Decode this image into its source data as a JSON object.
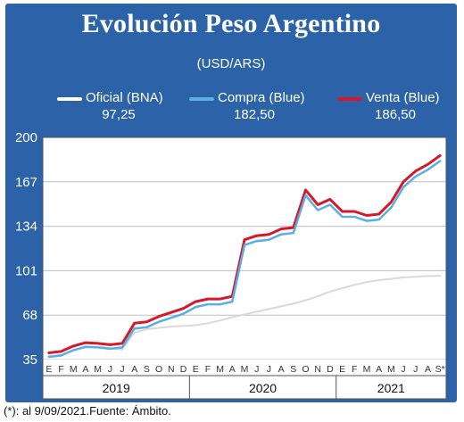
{
  "header": {
    "title": "Evolución Peso Argentino",
    "subtitle": "(USD/ARS)"
  },
  "legend": [
    {
      "name": "Oficial (BNA)",
      "value": "97,25",
      "color": "#ffffff"
    },
    {
      "name": "Compra (Blue)",
      "value": "182,50",
      "color": "#5aaee6"
    },
    {
      "name": "Venta (Blue)",
      "value": "186,50",
      "color": "#d7182a"
    }
  ],
  "footnote": "(*): al 9/09/2021.Fuente: Ámbito.",
  "colors": {
    "frame": "#2b62a8",
    "plot": "#ffffff",
    "grid": "#bfbfbf",
    "oficial_line": "#d9d9d9",
    "compra": "#5aaee6",
    "venta": "#d7182a"
  },
  "chart_data": {
    "type": "line",
    "title": "Evolución Peso Argentino",
    "subtitle": "(USD/ARS)",
    "ylim": [
      35,
      200
    ],
    "yticks": [
      "35",
      "68",
      "101",
      "134",
      "167",
      "200"
    ],
    "grid": "horizontal",
    "legend_position": "top",
    "month_labels": [
      "E",
      "F",
      "M",
      "A",
      "M",
      "J",
      "J",
      "A",
      "S",
      "O",
      "N",
      "D",
      "E",
      "F",
      "M",
      "A",
      "M",
      "J",
      "J",
      "A",
      "S",
      "O",
      "N",
      "D",
      "E",
      "F",
      "M",
      "A",
      "M",
      "J",
      "J",
      "A",
      "S*"
    ],
    "years": [
      "2019",
      "2020",
      "2021"
    ],
    "x_unit": "months since Jan 2019",
    "series": [
      {
        "name": "Oficial (BNA)",
        "points": [
          [
            0,
            37.5
          ],
          [
            1,
            38.5
          ],
          [
            2,
            41.5
          ],
          [
            3,
            44
          ],
          [
            4,
            44.5
          ],
          [
            5,
            43.5
          ],
          [
            6,
            42.5
          ],
          [
            7,
            55
          ],
          [
            8,
            57.5
          ],
          [
            9,
            58.5
          ],
          [
            10,
            59.5
          ],
          [
            11,
            60
          ],
          [
            12,
            60.5
          ],
          [
            13,
            62
          ],
          [
            14,
            64
          ],
          [
            15,
            66.5
          ],
          [
            16,
            68.5
          ],
          [
            17,
            70.5
          ],
          [
            18,
            72.5
          ],
          [
            19,
            74.5
          ],
          [
            20,
            76.5
          ],
          [
            21,
            79
          ],
          [
            22,
            82
          ],
          [
            23,
            85.5
          ],
          [
            24,
            88
          ],
          [
            25,
            90.5
          ],
          [
            26,
            92.5
          ],
          [
            27,
            94
          ],
          [
            28,
            95
          ],
          [
            29,
            96
          ],
          [
            30,
            96.5
          ],
          [
            31,
            97
          ],
          [
            32,
            97.25
          ]
        ]
      },
      {
        "name": "Compra (Blue)",
        "points": [
          [
            0,
            37
          ],
          [
            1,
            38
          ],
          [
            2,
            42
          ],
          [
            3,
            44.5
          ],
          [
            4,
            44
          ],
          [
            5,
            43
          ],
          [
            6,
            44
          ],
          [
            7,
            58
          ],
          [
            8,
            59
          ],
          [
            9,
            63
          ],
          [
            10,
            66
          ],
          [
            11,
            69
          ],
          [
            12,
            74
          ],
          [
            13,
            76
          ],
          [
            14,
            76
          ],
          [
            15,
            78
          ],
          [
            16,
            120
          ],
          [
            17,
            123
          ],
          [
            18,
            124
          ],
          [
            19,
            128
          ],
          [
            20,
            129
          ],
          [
            21,
            157
          ],
          [
            22,
            146
          ],
          [
            23,
            150
          ],
          [
            24,
            141
          ],
          [
            25,
            141
          ],
          [
            26,
            138
          ],
          [
            27,
            139
          ],
          [
            28,
            148
          ],
          [
            29,
            163
          ],
          [
            30,
            171
          ],
          [
            31,
            176
          ],
          [
            32,
            182.5
          ]
        ]
      },
      {
        "name": "Venta (Blue)",
        "points": [
          [
            0,
            40
          ],
          [
            1,
            41
          ],
          [
            2,
            45
          ],
          [
            3,
            47.5
          ],
          [
            4,
            47
          ],
          [
            5,
            46
          ],
          [
            6,
            47
          ],
          [
            7,
            62
          ],
          [
            8,
            63
          ],
          [
            9,
            67
          ],
          [
            10,
            70
          ],
          [
            11,
            73
          ],
          [
            12,
            78
          ],
          [
            13,
            80
          ],
          [
            14,
            80
          ],
          [
            15,
            82
          ],
          [
            16,
            124
          ],
          [
            17,
            127
          ],
          [
            18,
            128
          ],
          [
            19,
            132
          ],
          [
            20,
            133
          ],
          [
            21,
            161
          ],
          [
            22,
            150
          ],
          [
            23,
            154
          ],
          [
            24,
            145
          ],
          [
            25,
            145
          ],
          [
            26,
            142
          ],
          [
            27,
            143
          ],
          [
            28,
            152
          ],
          [
            29,
            167
          ],
          [
            30,
            175
          ],
          [
            31,
            180
          ],
          [
            32,
            186.5
          ]
        ]
      }
    ]
  }
}
